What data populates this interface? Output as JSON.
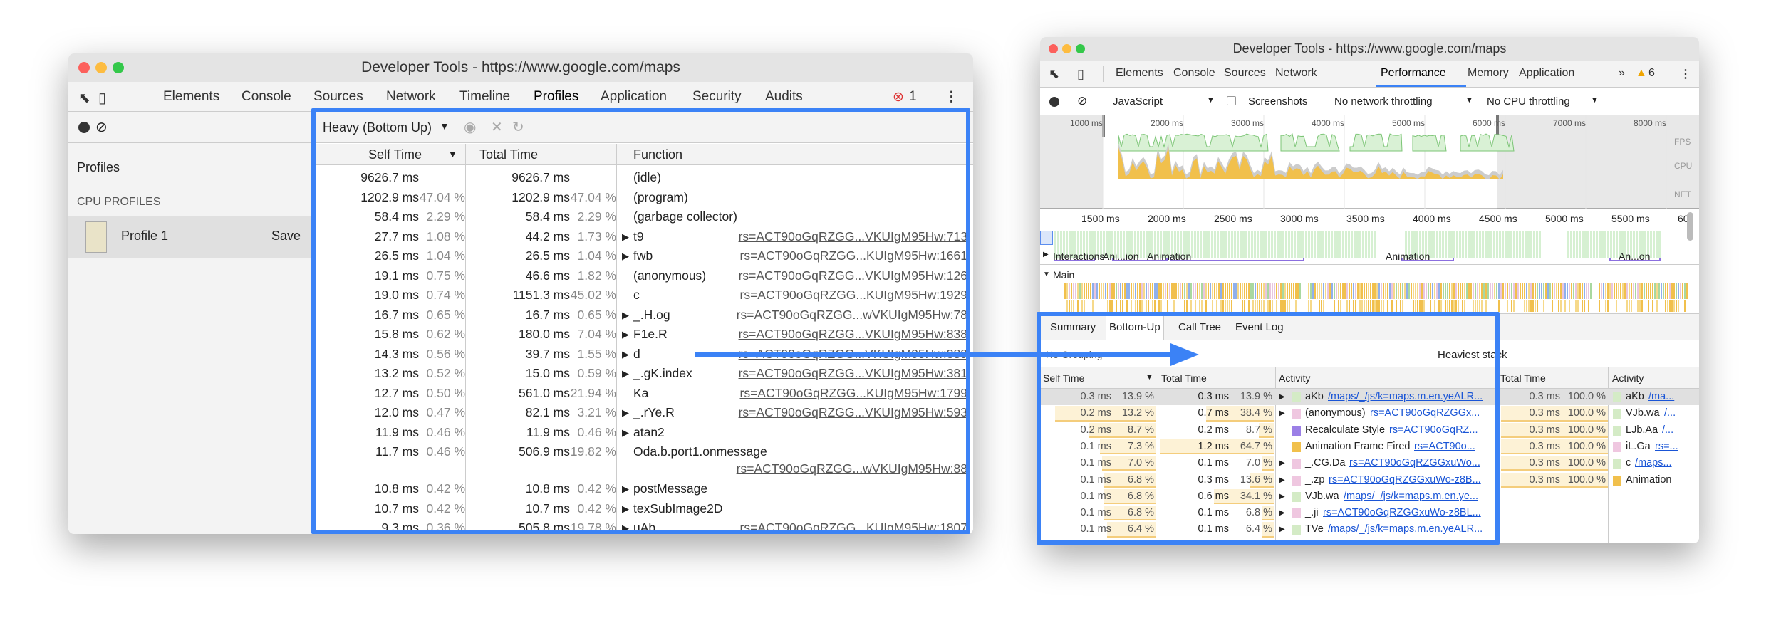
{
  "left_window": {
    "title": "Developer Tools - https://www.google.com/maps",
    "tabs": [
      "Elements",
      "Console",
      "Sources",
      "Network",
      "Timeline",
      "Profiles",
      "Application",
      "Security",
      "Audits"
    ],
    "active_tab": "Profiles",
    "error_count": "1",
    "sidebar": {
      "heading": "Profiles",
      "section": "CPU PROFILES",
      "profile_name": "Profile 1",
      "save_label": "Save"
    },
    "view_select": "Heavy (Bottom Up)",
    "columns": {
      "self": "Self Time",
      "total": "Total Time",
      "function": "Function"
    },
    "rows": [
      {
        "self": "9626.7 ms",
        "self_pct": "",
        "total": "9626.7 ms",
        "total_pct": "",
        "fn": "(idle)",
        "expand": false,
        "link": ""
      },
      {
        "self": "1202.9 ms",
        "self_pct": "47.04 %",
        "total": "1202.9 ms",
        "total_pct": "47.04 %",
        "fn": "(program)",
        "expand": false,
        "link": ""
      },
      {
        "self": "58.4 ms",
        "self_pct": "2.29 %",
        "total": "58.4 ms",
        "total_pct": "2.29 %",
        "fn": "(garbage collector)",
        "expand": false,
        "link": ""
      },
      {
        "self": "27.7 ms",
        "self_pct": "1.08 %",
        "total": "44.2 ms",
        "total_pct": "1.73 %",
        "fn": "t9",
        "expand": true,
        "link": "rs=ACT90oGqRZGG...VKUIgM95Hw:713"
      },
      {
        "self": "26.5 ms",
        "self_pct": "1.04 %",
        "total": "26.5 ms",
        "total_pct": "1.04 %",
        "fn": "fwb",
        "expand": true,
        "link": "rs=ACT90oGqRZGG...KUIgM95Hw:1661"
      },
      {
        "self": "19.1 ms",
        "self_pct": "0.75 %",
        "total": "46.6 ms",
        "total_pct": "1.82 %",
        "fn": "(anonymous)",
        "expand": false,
        "link": "rs=ACT90oGqRZGG...VKUIgM95Hw:126"
      },
      {
        "self": "19.0 ms",
        "self_pct": "0.74 %",
        "total": "1151.3 ms",
        "total_pct": "45.02 %",
        "fn": "c",
        "expand": false,
        "link": "rs=ACT90oGqRZGG...KUIgM95Hw:1929"
      },
      {
        "self": "16.7 ms",
        "self_pct": "0.65 %",
        "total": "16.7 ms",
        "total_pct": "0.65 %",
        "fn": "_.H.og",
        "expand": true,
        "link": "rs=ACT90oGqRZGG...wVKUIgM95Hw:78"
      },
      {
        "self": "15.8 ms",
        "self_pct": "0.62 %",
        "total": "180.0 ms",
        "total_pct": "7.04 %",
        "fn": "F1e.R",
        "expand": true,
        "link": "rs=ACT90oGqRZGG...VKUIgM95Hw:838"
      },
      {
        "self": "14.3 ms",
        "self_pct": "0.56 %",
        "total": "39.7 ms",
        "total_pct": "1.55 %",
        "fn": "d",
        "expand": true,
        "link": "rs=ACT90oGqRZGG...VKUIgM95Hw:389"
      },
      {
        "self": "13.2 ms",
        "self_pct": "0.52 %",
        "total": "15.0 ms",
        "total_pct": "0.59 %",
        "fn": "_.gK.index",
        "expand": true,
        "link": "rs=ACT90oGqRZGG...VKUIgM95Hw:381"
      },
      {
        "self": "12.7 ms",
        "self_pct": "0.50 %",
        "total": "561.0 ms",
        "total_pct": "21.94 %",
        "fn": "Ka",
        "expand": false,
        "link": "rs=ACT90oGqRZGG...KUIgM95Hw:1799"
      },
      {
        "self": "12.0 ms",
        "self_pct": "0.47 %",
        "total": "82.1 ms",
        "total_pct": "3.21 %",
        "fn": "_.rYe.R",
        "expand": true,
        "link": "rs=ACT90oGqRZGG...VKUIgM95Hw:593"
      },
      {
        "self": "11.9 ms",
        "self_pct": "0.46 %",
        "total": "11.9 ms",
        "total_pct": "0.46 %",
        "fn": "atan2",
        "expand": true,
        "link": ""
      },
      {
        "self": "11.7 ms",
        "self_pct": "0.46 %",
        "total": "506.9 ms",
        "total_pct": "19.82 %",
        "fn": "Oda.b.port1.onmessage",
        "expand": false,
        "link": "rs=ACT90oGqRZGG...wVKUIgM95Hw:88",
        "wrap": true
      },
      {
        "self": "10.8 ms",
        "self_pct": "0.42 %",
        "total": "10.8 ms",
        "total_pct": "0.42 %",
        "fn": "postMessage",
        "expand": true,
        "link": ""
      },
      {
        "self": "10.7 ms",
        "self_pct": "0.42 %",
        "total": "10.7 ms",
        "total_pct": "0.42 %",
        "fn": "texSubImage2D",
        "expand": true,
        "link": ""
      },
      {
        "self": "9.3 ms",
        "self_pct": "0.36 %",
        "total": "505.8 ms",
        "total_pct": "19.78 %",
        "fn": "uAb",
        "expand": true,
        "link": "rs=ACT90oGqRZGG...KUIgM95Hw:1807"
      }
    ]
  },
  "right_window": {
    "title": "Developer Tools - https://www.google.com/maps",
    "tabs": [
      "Elements",
      "Console",
      "Sources",
      "Network",
      "Performance",
      "Memory",
      "Application"
    ],
    "active_tab": "Performance",
    "more": "»",
    "warning_count": "6",
    "controls": {
      "category": "JavaScript",
      "screenshots": "Screenshots",
      "network": "No network throttling",
      "cpu": "No CPU throttling"
    },
    "overview_ticks": [
      "1000 ms",
      "2000 ms",
      "3000 ms",
      "4000 ms",
      "5000 ms",
      "6000 ms",
      "7000 ms",
      "8000 ms"
    ],
    "lanes": [
      "FPS",
      "CPU",
      "NET"
    ],
    "ruler_ticks": [
      "1500 ms",
      "2000 ms",
      "2500 ms",
      "3000 ms",
      "3500 ms",
      "4000 ms",
      "4500 ms",
      "5000 ms",
      "5500 ms",
      "60"
    ],
    "interactions": {
      "label": "Interactions",
      "items": [
        "Ani...ion",
        "Animation",
        "Animation",
        "An...on"
      ]
    },
    "main_label": "Main",
    "bottom_tabs": [
      "Summary",
      "Bottom-Up",
      "Call Tree",
      "Event Log"
    ],
    "active_bottom_tab": "Bottom-Up",
    "grouping": "No Grouping",
    "columns": {
      "self": "Self Time",
      "total": "Total Time",
      "activity": "Activity"
    },
    "rows": [
      {
        "self": "0.3 ms",
        "self_pct": "13.9 %",
        "total": "0.3 ms",
        "total_pct": "13.9 %",
        "name": "aKb",
        "link": "/maps/_/js/k=maps.m.en.yeALR...",
        "color": "#d4ebc6",
        "expand": true
      },
      {
        "self": "0.2 ms",
        "self_pct": "13.2 %",
        "total": "0.7 ms",
        "total_pct": "38.4 %",
        "name": "(anonymous)",
        "link": "rs=ACT90oGqRZGGx...",
        "color": "#efc7e0",
        "expand": true
      },
      {
        "self": "0.2 ms",
        "self_pct": "8.7 %",
        "total": "0.2 ms",
        "total_pct": "8.7 %",
        "name": "Recalculate Style",
        "link": "rs=ACT90oGqRZ...",
        "color": "#9b7fe6",
        "expand": false
      },
      {
        "self": "0.1 ms",
        "self_pct": "7.3 %",
        "total": "1.2 ms",
        "total_pct": "64.7 %",
        "name": "Animation Frame Fired",
        "link": "rs=ACT90o...",
        "color": "#f1c04c",
        "expand": false
      },
      {
        "self": "0.1 ms",
        "self_pct": "7.0 %",
        "total": "0.1 ms",
        "total_pct": "7.0 %",
        "name": "_.CG.Da",
        "link": "rs=ACT90oGqRZGGxuWo...",
        "color": "#efc7e0",
        "expand": true
      },
      {
        "self": "0.1 ms",
        "self_pct": "6.8 %",
        "total": "0.3 ms",
        "total_pct": "13.6 %",
        "name": "_.zp",
        "link": "rs=ACT90oGqRZGGxuWo-z8B...",
        "color": "#efc7e0",
        "expand": true
      },
      {
        "self": "0.1 ms",
        "self_pct": "6.8 %",
        "total": "0.6 ms",
        "total_pct": "34.1 %",
        "name": "VJb.wa",
        "link": "/maps/_/js/k=maps.m.en.ye...",
        "color": "#d4ebc6",
        "expand": true
      },
      {
        "self": "0.1 ms",
        "self_pct": "6.8 %",
        "total": "0.1 ms",
        "total_pct": "6.8 %",
        "name": "_.ji",
        "link": "rs=ACT90oGqRZGGxuWo-z8BL...",
        "color": "#efc7e0",
        "expand": true
      },
      {
        "self": "0.1 ms",
        "self_pct": "6.4 %",
        "total": "0.1 ms",
        "total_pct": "6.4 %",
        "name": "TVe",
        "link": "/maps/_/js/k=maps.m.en.yeALR...",
        "color": "#d4ebc6",
        "expand": true
      }
    ],
    "heaviest": {
      "title": "Heaviest stack",
      "columns": {
        "total": "Total Time",
        "activity": "Activity"
      },
      "rows": [
        {
          "total": "0.3 ms",
          "pct": "100.0 %",
          "name": "aKb",
          "link": "/ma...",
          "color": "#d4ebc6"
        },
        {
          "total": "0.3 ms",
          "pct": "100.0 %",
          "name": "VJb.wa",
          "link": "/...",
          "color": "#d4ebc6"
        },
        {
          "total": "0.3 ms",
          "pct": "100.0 %",
          "name": "LJb.Aa",
          "link": "/...",
          "color": "#d4ebc6"
        },
        {
          "total": "0.3 ms",
          "pct": "100.0 %",
          "name": "iL.Ga",
          "link": "rs=...",
          "color": "#efc7e0"
        },
        {
          "total": "0.3 ms",
          "pct": "100.0 %",
          "name": "c",
          "link": "/maps...",
          "color": "#d4ebc6"
        },
        {
          "total": "0.3 ms",
          "pct": "100.0 %",
          "name": "Animation",
          "link": "",
          "color": "#f1c04c"
        }
      ]
    }
  },
  "colors": {
    "highlight": "#3b82f6",
    "accent_tab": "#3b82f6",
    "fps": "#8fd08a",
    "scripting": "#f1c04c",
    "link": "#1a55d6"
  }
}
